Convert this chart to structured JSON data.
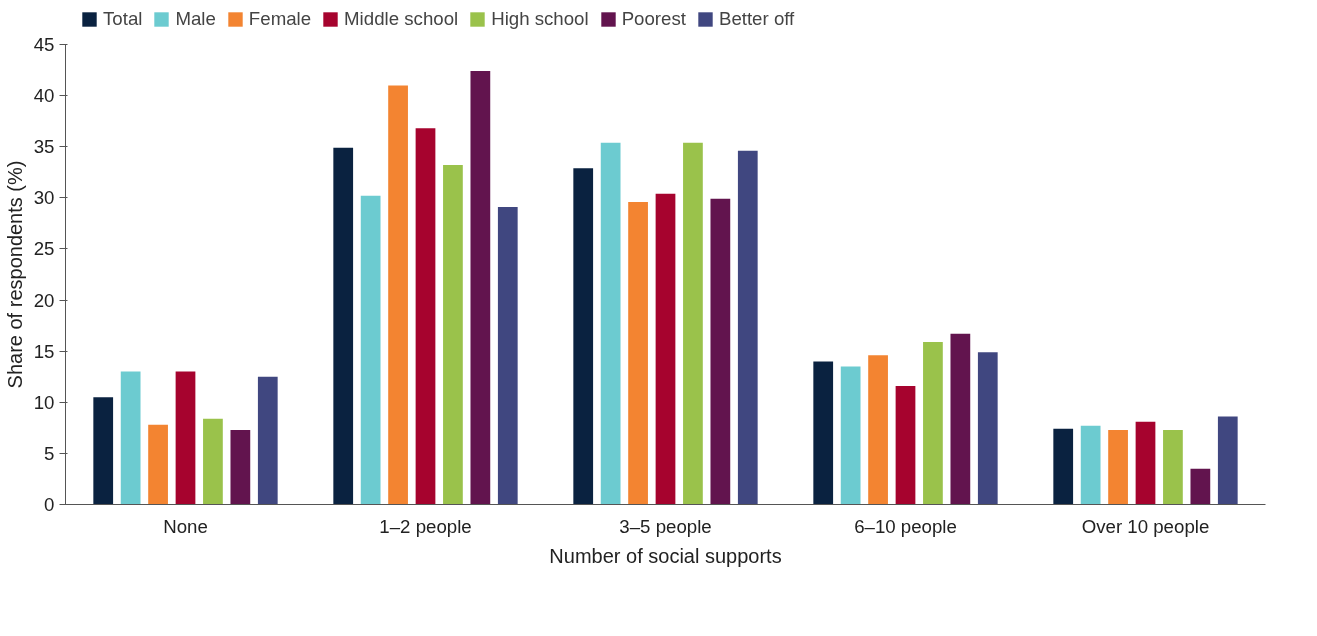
{
  "chart_data": {
    "type": "bar",
    "xlabel": "Number of social supports",
    "ylabel": "Share of respondents (%)",
    "categories": [
      "None",
      "1–2 people",
      "3–5 people",
      "6–10 people",
      "Over 10 people"
    ],
    "series": [
      {
        "name": "Total",
        "color": "#0a2240",
        "values": [
          10.5,
          34.9,
          32.9,
          14.0,
          7.4
        ]
      },
      {
        "name": "Male",
        "color": "#6ccbd0",
        "values": [
          13.0,
          30.2,
          35.4,
          13.5,
          7.7
        ]
      },
      {
        "name": "Female",
        "color": "#f38431",
        "values": [
          7.8,
          41.0,
          29.6,
          14.6,
          7.3
        ]
      },
      {
        "name": "Middle school",
        "color": "#a6032e",
        "values": [
          13.0,
          36.8,
          30.4,
          11.6,
          8.1
        ]
      },
      {
        "name": "High school",
        "color": "#9ac24b",
        "values": [
          8.4,
          33.2,
          35.4,
          15.9,
          7.3
        ]
      },
      {
        "name": "Poorest",
        "color": "#62144e",
        "values": [
          7.3,
          42.4,
          29.9,
          16.7,
          3.5
        ]
      },
      {
        "name": "Better off",
        "color": "#404780",
        "values": [
          12.5,
          29.1,
          34.6,
          14.9,
          8.6
        ]
      }
    ],
    "ylim": [
      0,
      45
    ],
    "yticks": [
      0,
      5,
      10,
      15,
      20,
      25,
      30,
      35,
      40,
      45
    ],
    "grid": false,
    "legend": "top"
  }
}
